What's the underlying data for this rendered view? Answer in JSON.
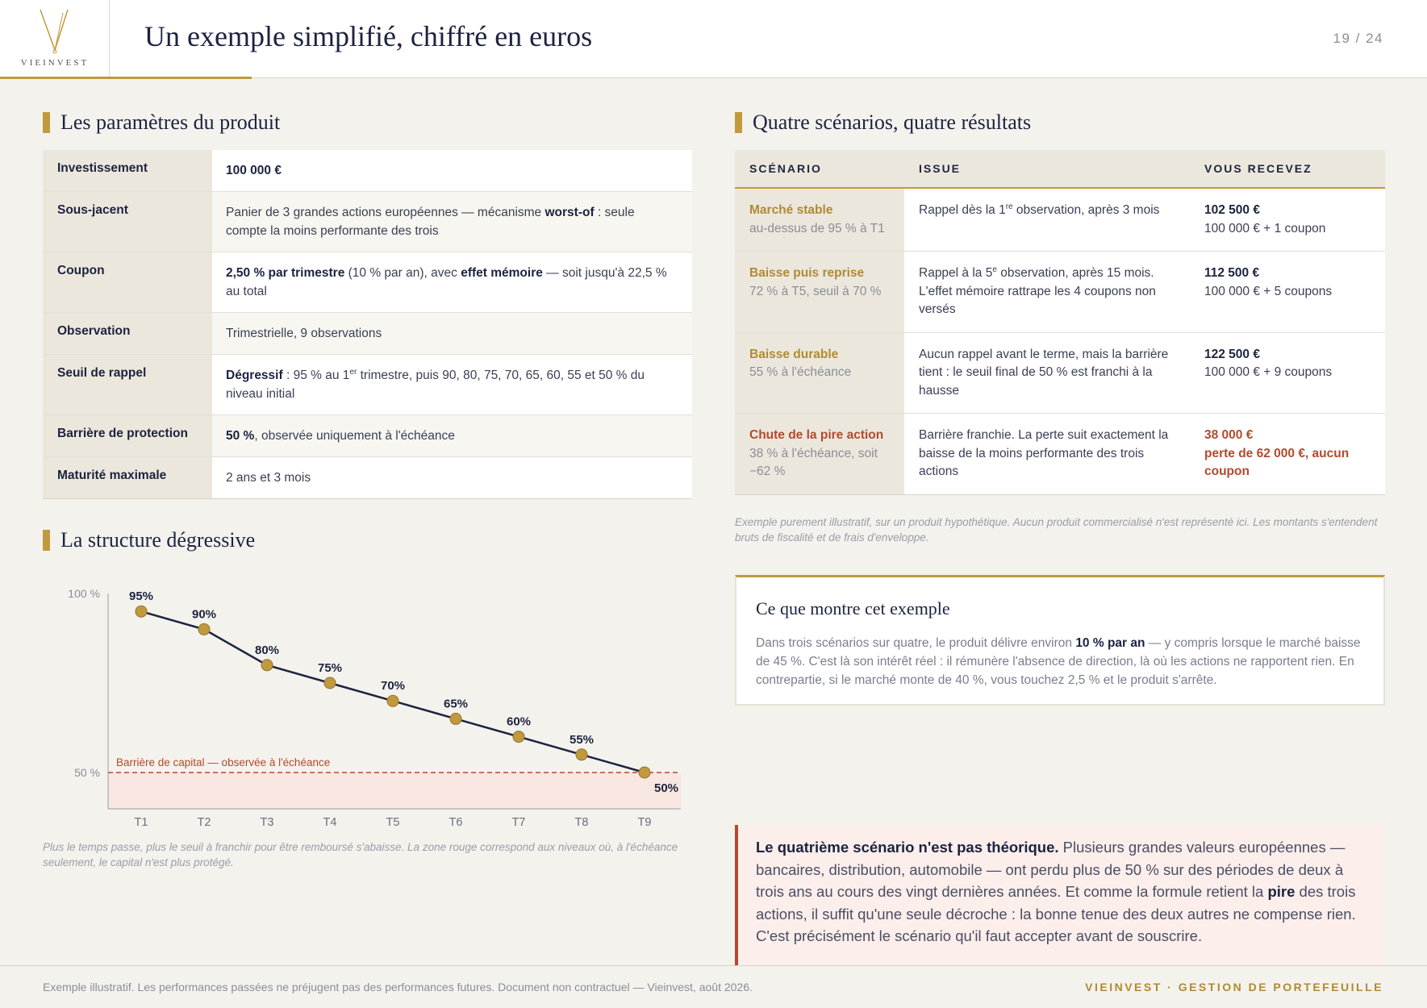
{
  "logo": {
    "text": "VIEINVEST"
  },
  "header": {
    "title": "Un exemple simplifié, chiffré en euros",
    "page": "19 / 24"
  },
  "params": {
    "title": "Les paramètres du produit",
    "rows": [
      {
        "key": "Investissement",
        "parts": [
          {
            "t": "100 000 €",
            "b": true
          }
        ]
      },
      {
        "key": "Sous-jacent",
        "parts": [
          {
            "t": "Panier de 3 grandes actions européennes — mécanisme "
          },
          {
            "t": "worst-of",
            "b": true
          },
          {
            "t": " : seule compte la moins performante des trois"
          }
        ]
      },
      {
        "key": "Coupon",
        "parts": [
          {
            "t": "2,50 % par trimestre",
            "b": true
          },
          {
            "t": " (10 % par an), avec "
          },
          {
            "t": "effet mémoire",
            "b": true
          },
          {
            "t": " — soit jusqu'à 22,5 % au total"
          }
        ]
      },
      {
        "key": "Observation",
        "parts": [
          {
            "t": "Trimestrielle, 9 observations"
          }
        ]
      },
      {
        "key": "Seuil de rappel",
        "parts": [
          {
            "t": "Dégressif",
            "b": true
          },
          {
            "t": " : 95 % au 1"
          },
          {
            "t": "er",
            "sup": true
          },
          {
            "t": " trimestre, puis 90, 80, 75, 70, 65, 60, 55 et 50 % du niveau initial"
          }
        ]
      },
      {
        "key": "Barrière de protection",
        "parts": [
          {
            "t": "50 %",
            "b": true
          },
          {
            "t": ", observée uniquement à l'échéance"
          }
        ]
      },
      {
        "key": "Maturité maximale",
        "parts": [
          {
            "t": "2 ans et 3 mois"
          }
        ]
      }
    ]
  },
  "scenarios": {
    "title": "Quatre scénarios, quatre résultats",
    "headers": [
      "SCÉNARIO",
      "ISSUE",
      "VOUS RECEVEZ"
    ],
    "rows": [
      {
        "name": "Marché stable",
        "sub": "au-dessus de 95 % à T1",
        "issue": [
          {
            "t": "Rappel dès la 1"
          },
          {
            "t": "re",
            "sup": true
          },
          {
            "t": " observation, après 3 mois"
          }
        ],
        "amount": "102 500 €",
        "detail": "100 000 € + 1 coupon",
        "negative": false
      },
      {
        "name": "Baisse puis reprise",
        "sub": "72 % à T5, seuil à 70 %",
        "issue": [
          {
            "t": "Rappel à la 5"
          },
          {
            "t": "e",
            "sup": true
          },
          {
            "t": " observation, après 15 mois. L'effet mémoire rattrape les 4 coupons non versés"
          }
        ],
        "amount": "112 500 €",
        "detail": "100 000 € + 5 coupons",
        "negative": false
      },
      {
        "name": "Baisse durable",
        "sub": "55 % à l'échéance",
        "issue": [
          {
            "t": "Aucun rappel avant le terme, mais la barrière tient : le seuil final de 50 % est franchi à la hausse"
          }
        ],
        "amount": "122 500 €",
        "detail": "100 000 € + 9 coupons",
        "negative": false
      },
      {
        "name": "Chute de la pire action",
        "sub": "38 % à l'échéance, soit −62 %",
        "issue": [
          {
            "t": "Barrière franchie. La perte suit exactement la baisse de la moins performante des trois actions"
          }
        ],
        "amount": "38 000 €",
        "detail": "perte de 62 000 €, aucun coupon",
        "negative": true
      }
    ],
    "note": "Exemple purement illustratif, sur un produit hypothétique. Aucun produit commercialisé n'est représenté ici. Les montants s'entendent bruts de fiscalité et de frais d'enveloppe."
  },
  "structure": {
    "title": "La structure dégressive",
    "note": "Plus le temps passe, plus le seuil à franchir pour être remboursé s'abaisse. La zone rouge correspond aux niveaux où, à l'échéance seulement, le capital n'est plus protégé."
  },
  "chart_data": {
    "type": "line",
    "x": [
      "T1",
      "T2",
      "T3",
      "T4",
      "T5",
      "T6",
      "T7",
      "T8",
      "T9"
    ],
    "values": [
      95,
      90,
      80,
      75,
      70,
      65,
      60,
      55,
      50
    ],
    "data_labels": [
      "95%",
      "90%",
      "80%",
      "75%",
      "70%",
      "65%",
      "60%",
      "55%",
      "50%"
    ],
    "y_ticks": [
      "100 %",
      "50 %"
    ],
    "ylim": [
      40,
      100
    ],
    "barrier": {
      "value": 50,
      "label": "Barrière de capital — observée à l'échéance",
      "color": "#b24a2e"
    },
    "line_color": "#1c2340",
    "marker_color": "#c19a3d",
    "grid": false
  },
  "callout": {
    "title": "Ce que montre cet exemple",
    "parts": [
      {
        "t": "Dans trois scénarios sur quatre, le produit délivre environ "
      },
      {
        "t": "10 % par an",
        "b": true
      },
      {
        "t": " — y compris lorsque le marché baisse de 45 %. C'est là son intérêt réel : il rémunère l'absence de direction, là où les actions ne rapportent rien. En contrepartie, si le marché monte de 40 %, vous touchez 2,5 % et le produit s'arrête."
      }
    ]
  },
  "warning": {
    "parts": [
      {
        "t": "Le quatrième scénario n'est pas théorique.",
        "b": true
      },
      {
        "t": " Plusieurs grandes valeurs européennes — bancaires, distribution, automobile — ont perdu plus de 50 % sur des périodes de deux à trois ans au cours des vingt dernières années. Et comme la formule retient la "
      },
      {
        "t": "pire",
        "b": true
      },
      {
        "t": " des trois actions, il suffit qu'une seule décroche : la bonne tenue des deux autres ne compense rien. C'est précisément le scénario qu'il faut accepter avant de souscrire."
      }
    ]
  },
  "footer": {
    "left": "Exemple illustratif. Les performances passées ne préjugent pas des performances futures. Document non contractuel — Vieinvest, août 2026.",
    "right": "VIEINVEST · GESTION DE PORTEFEUILLE"
  },
  "colors": {
    "gold": "#c19a3d",
    "navy": "#1c2340",
    "red": "#b24a2e"
  }
}
